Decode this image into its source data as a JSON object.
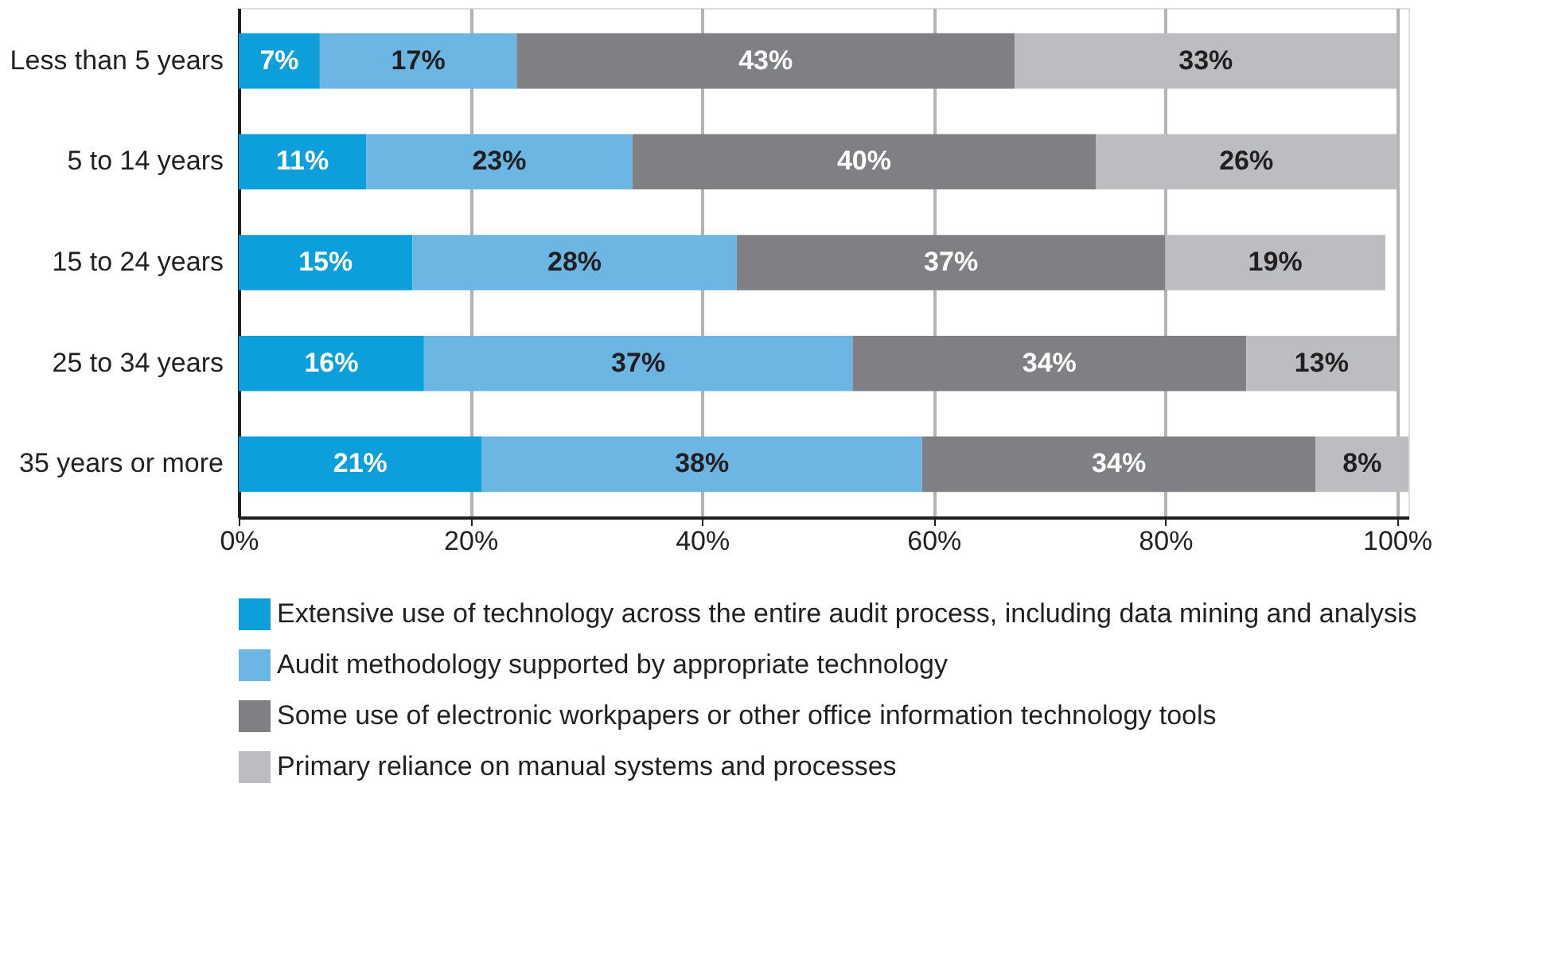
{
  "chart_data": {
    "type": "bar",
    "orientation": "horizontal",
    "stacked": true,
    "grid": "x",
    "legend": "bottom",
    "categories": [
      "Less than 5 years",
      "5 to 14 years",
      "15 to 24 years",
      "25 to 34 years",
      "35 years or more"
    ],
    "series": [
      {
        "name": "Extensive use of technology across the entire audit process, including data mining and analysis",
        "color": "#0c9fdc",
        "values": [
          7,
          11,
          15,
          16,
          21
        ],
        "value_labels": [
          "7%",
          "11%",
          "15%",
          "16%",
          "21%"
        ]
      },
      {
        "name": "Audit methodology supported by appropriate technology",
        "color": "#6cb6e3",
        "values": [
          17,
          23,
          28,
          37,
          38
        ],
        "value_labels": [
          "17%",
          "23%",
          "28%",
          "37%",
          "38%"
        ]
      },
      {
        "name": "Some use of electronic workpapers or other office information technology tools",
        "color": "#7f8083",
        "values": [
          43,
          40,
          37,
          34,
          34
        ],
        "value_labels": [
          "43%",
          "40%",
          "37%",
          "34%",
          "34%"
        ]
      },
      {
        "name": "Primary reliance on manual systems and processes",
        "color": "#bcbdc0",
        "values": [
          33,
          26,
          19,
          13,
          8
        ],
        "value_labels": [
          "33%",
          "26%",
          "19%",
          "13%",
          "8%"
        ]
      }
    ],
    "xlim": [
      0,
      101
    ],
    "xticks": [
      {
        "value": 0,
        "label": "0%"
      },
      {
        "value": 20,
        "label": "20%"
      },
      {
        "value": 40,
        "label": "40%"
      },
      {
        "value": 60,
        "label": "60%"
      },
      {
        "value": 80,
        "label": "80%"
      },
      {
        "value": 100,
        "label": "100%"
      }
    ]
  }
}
